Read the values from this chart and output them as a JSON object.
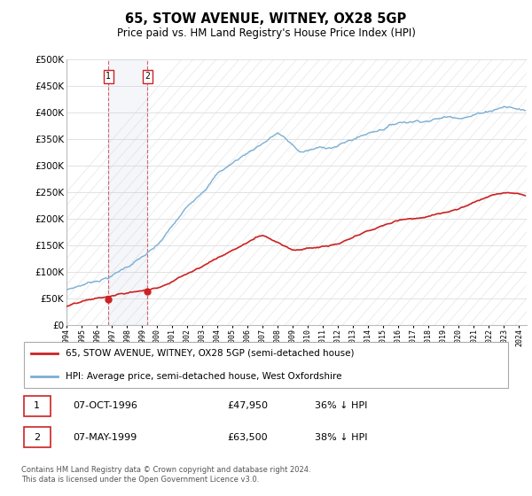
{
  "title": "65, STOW AVENUE, WITNEY, OX28 5GP",
  "subtitle": "Price paid vs. HM Land Registry's House Price Index (HPI)",
  "ylabel_ticks": [
    "£0",
    "£50K",
    "£100K",
    "£150K",
    "£200K",
    "£250K",
    "£300K",
    "£350K",
    "£400K",
    "£450K",
    "£500K"
  ],
  "ytick_values": [
    0,
    50000,
    100000,
    150000,
    200000,
    250000,
    300000,
    350000,
    400000,
    450000,
    500000
  ],
  "ylim": [
    0,
    500000
  ],
  "xlim_start": 1994.0,
  "xlim_end": 2024.5,
  "hpi_color": "#7bafd4",
  "price_color": "#cc2222",
  "transaction1_date": 1996.77,
  "transaction1_price": 47950,
  "transaction1_label": "1",
  "transaction2_date": 1999.36,
  "transaction2_price": 63500,
  "transaction2_label": "2",
  "legend_line1": "65, STOW AVENUE, WITNEY, OX28 5GP (semi-detached house)",
  "legend_line2": "HPI: Average price, semi-detached house, West Oxfordshire",
  "table_row1": [
    "1",
    "07-OCT-1996",
    "£47,950",
    "36% ↓ HPI"
  ],
  "table_row2": [
    "2",
    "07-MAY-1999",
    "£63,500",
    "38% ↓ HPI"
  ],
  "footer": "Contains HM Land Registry data © Crown copyright and database right 2024.\nThis data is licensed under the Open Government Licence v3.0.",
  "grid_color": "#dddddd",
  "hatch_color": "#e0e0e0"
}
